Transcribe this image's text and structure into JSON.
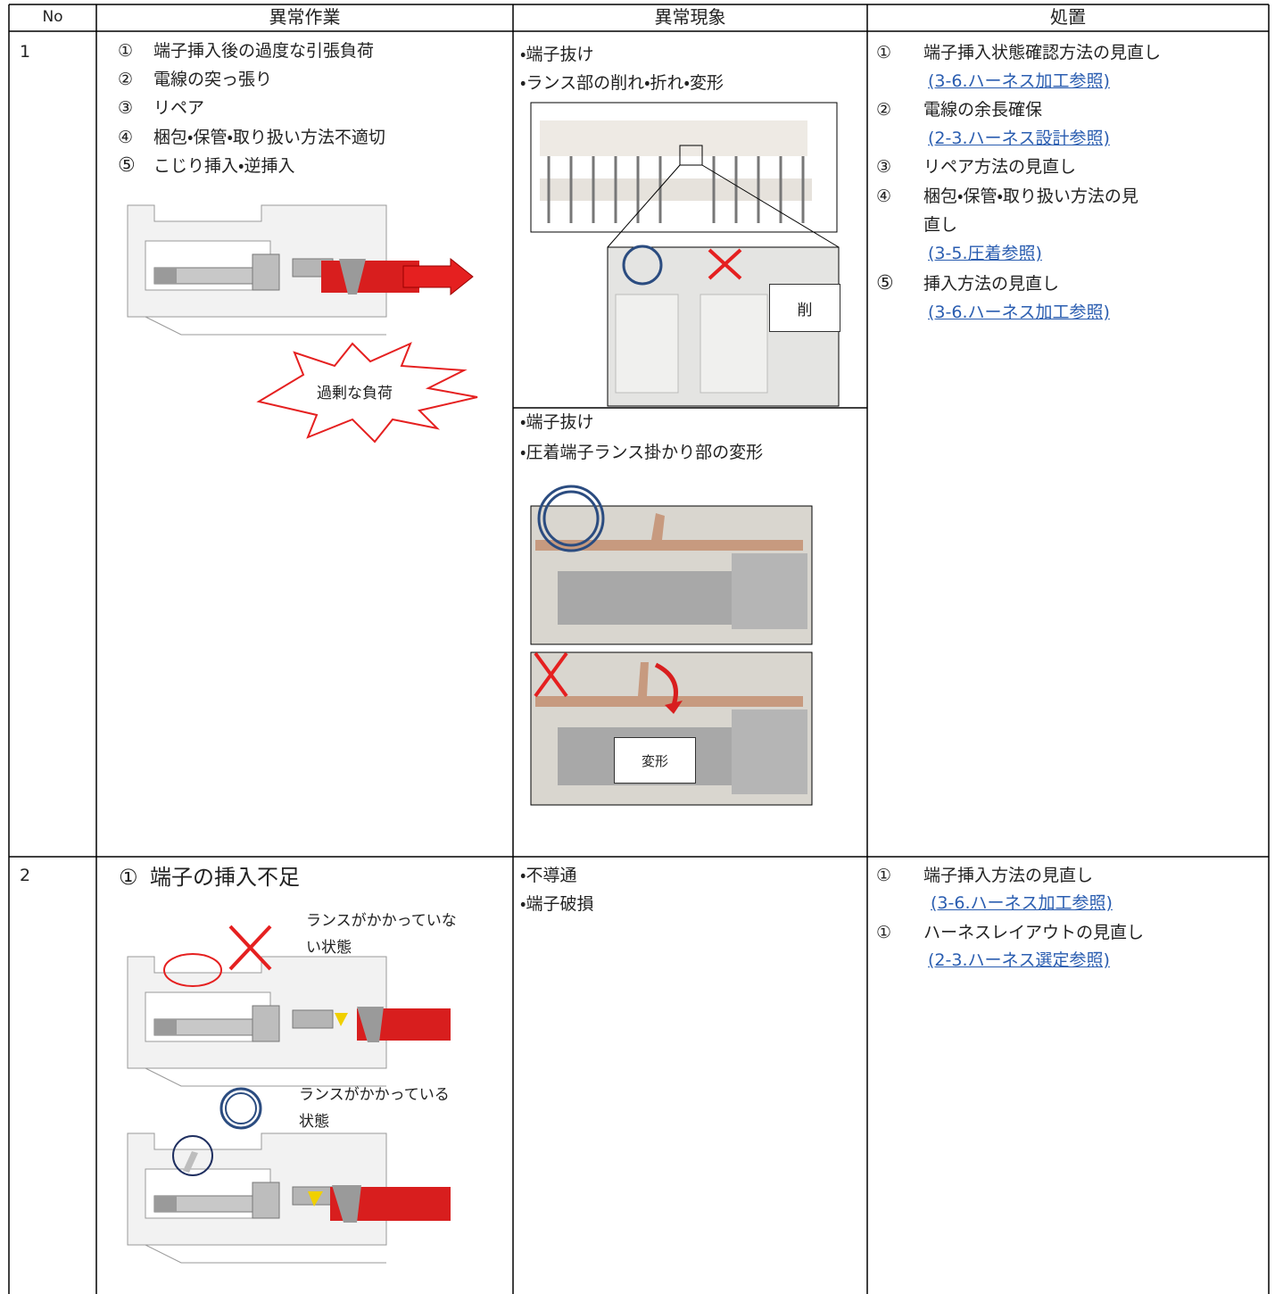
{
  "header": [
    "No",
    "異常作業",
    "異常現象",
    "処置"
  ],
  "rows": [
    {
      "no": "1",
      "work": [
        {
          "marker": "①",
          "text": "端子挿入後の過度な引張負荷"
        },
        {
          "marker": "②",
          "text": "電線の突っ張り"
        },
        {
          "marker": "③",
          "text": "リペア"
        },
        {
          "marker": "④",
          "text": "梱包・保管・取り扱い方法不適切"
        },
        {
          "marker": "⑤",
          "text": "こじり挿入・逆挿入"
        }
      ],
      "work_figure_label": "過剰な負荷",
      "phenomena": [
        {
          "lines": [
            "・端子抜け",
            "・ランス部の削れ・折れ・変形"
          ],
          "figure_label": "削"
        },
        {
          "lines": [
            "・端子抜け",
            "・圧着端子ランス掛かり部の変形"
          ],
          "figure_label": "変形"
        }
      ],
      "measures": [
        {
          "marker": "①",
          "text": "端子挿入状態確認方法の見直し",
          "link": "(3-6.ハーネス加工参照)"
        },
        {
          "marker": "②",
          "text": "電線の余長確保",
          "link": "(2-3.ハーネス設計参照)"
        },
        {
          "marker": "③",
          "text": "リペア方法の見直し"
        },
        {
          "marker": "④",
          "text": "梱包・保管・取り扱い方法の見",
          "text2": "直し",
          "link": "(3-5.圧着参照)"
        },
        {
          "marker": "⑤",
          "text": "挿入方法の見直し",
          "link": "(3-6.ハーネス加工参照)"
        }
      ]
    },
    {
      "no": "2",
      "work": [
        {
          "marker": "①",
          "text": "端子の挿入不足"
        }
      ],
      "work_captions": [
        [
          "ランスがかかっていな",
          "い状態"
        ],
        [
          "ランスがかかっている",
          "状態"
        ]
      ],
      "phenomena": [
        {
          "lines": [
            "・不導通",
            "・端子破損"
          ]
        }
      ],
      "measures": [
        {
          "marker": "①",
          "text": "端子挿入方法の見直し",
          "link": "(3-6.ハーネス加工参照)"
        },
        {
          "marker": "①",
          "text": "ハーネスレイアウトの見直し",
          "link": "(2-3.ハーネス選定参照)"
        }
      ]
    }
  ]
}
